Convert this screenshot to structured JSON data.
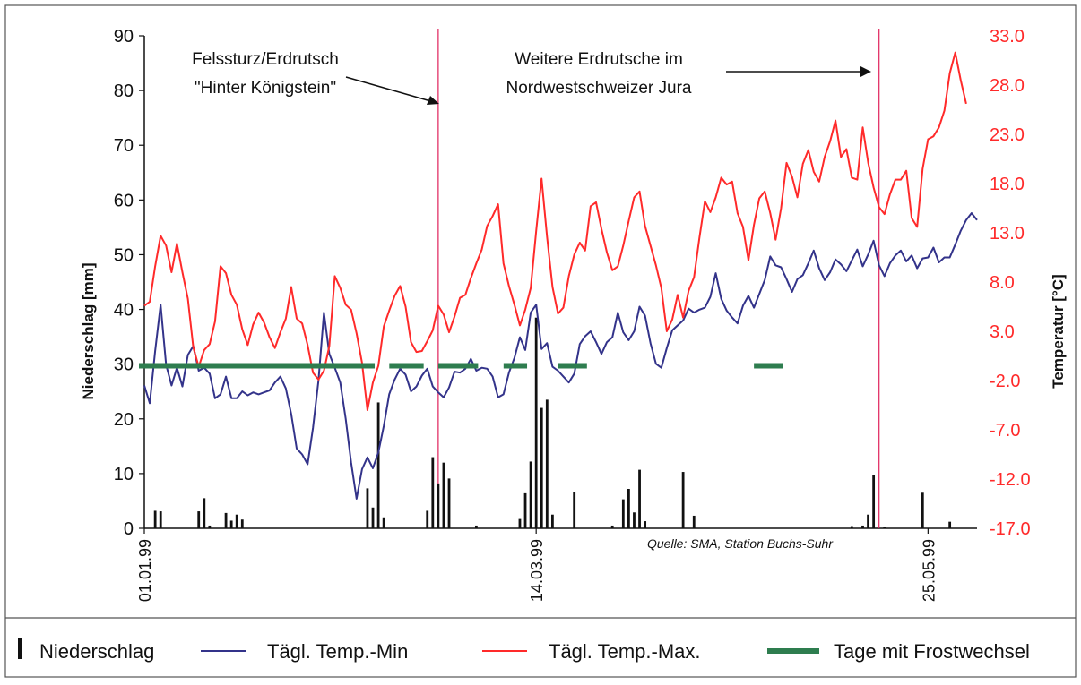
{
  "chart_data": {
    "type": "bar+line",
    "title": "",
    "ylabel_left": "Niederschlag [mm]",
    "ylabel_right": "Temperatur [°C]",
    "y_left_lim": [
      0,
      90
    ],
    "y_left_ticks": [
      "90",
      "80",
      "70",
      "60",
      "50",
      "40",
      "30",
      "20",
      "10",
      "0"
    ],
    "y_right_lim": [
      -17.0,
      33.0
    ],
    "y_right_ticks": [
      "33.0",
      "28.0",
      "23.0",
      "18.0",
      "13.0",
      "8.0",
      "3.0",
      "-2.0",
      "-7.0",
      "-12.0",
      "-17.0"
    ],
    "x_ticks": [
      "01.01.99",
      "14.03.99",
      "25.05.99"
    ],
    "x_range_days": [
      1,
      154
    ],
    "grid": false,
    "series": [
      {
        "name": "Niederschlag",
        "kind": "bar",
        "color": "#111111",
        "values": [
          0,
          0,
          3.2,
          3.1,
          0,
          0,
          0,
          0,
          0,
          0,
          3.1,
          5.5,
          0.5,
          0,
          0,
          2.8,
          1.4,
          2.5,
          1.6,
          0,
          0,
          0,
          0,
          0,
          0,
          0,
          0,
          0,
          0,
          0,
          0,
          0,
          0,
          0,
          0,
          0,
          0,
          0,
          0,
          0,
          0,
          7.3,
          3.8,
          23,
          2,
          0,
          0,
          0,
          0,
          0,
          0,
          0,
          3.2,
          13,
          8.2,
          12,
          9.1,
          0,
          0,
          0,
          0,
          0.5,
          0,
          0,
          0,
          0,
          0,
          0,
          0,
          1.7,
          6.4,
          12.2,
          38.5,
          22,
          23.5,
          2.5,
          0,
          0,
          0,
          6.6,
          0,
          0,
          0,
          0,
          0,
          0,
          0.5,
          0,
          5.3,
          7.2,
          2.9,
          10.7,
          1.3,
          0,
          0,
          0,
          0,
          0,
          0,
          10.3,
          0,
          2.3,
          0,
          0,
          0,
          0,
          0,
          0,
          0,
          0,
          0,
          0,
          0,
          0,
          0,
          0,
          0,
          0,
          0,
          0,
          0,
          0,
          0,
          0,
          0,
          0,
          0,
          0,
          0,
          0,
          0.4,
          0,
          0.5,
          2.5,
          9.7,
          0,
          0.3,
          0,
          0,
          0,
          0,
          0,
          0,
          6.5,
          0,
          0,
          0,
          0,
          1.2,
          0,
          0,
          0,
          0,
          0,
          0,
          0,
          0,
          0
        ]
      },
      {
        "name": "Tägl. Temp.-Min",
        "kind": "line",
        "color": "#33338a",
        "values": [
          -2.5,
          -4.3,
          1.0,
          5.7,
          -0.4,
          -2.5,
          -0.7,
          -2.6,
          0.6,
          1.5,
          -1.0,
          -0.7,
          -1.3,
          -3.8,
          -3.4,
          -1.6,
          -3.8,
          -3.8,
          -3.1,
          -3.5,
          -3.2,
          -3.4,
          -3.2,
          -3.0,
          -2.2,
          -1.6,
          -2.8,
          -5.4,
          -8.9,
          -9.5,
          -10.5,
          -6.8,
          -2.0,
          4.9,
          0.7,
          -0.7,
          -2.2,
          -5.9,
          -10.3,
          -14.0,
          -11.0,
          -9.8,
          -10.9,
          -9.3,
          -6.6,
          -3.4,
          -1.9,
          -0.8,
          -1.4,
          -3.1,
          -2.6,
          -1.5,
          -0.8,
          -2.6,
          -3.2,
          -3.7,
          -2.7,
          -1.1,
          -1.2,
          -0.8,
          0.2,
          -1.0,
          -0.7,
          -0.8,
          -1.6,
          -3.7,
          -3.4,
          -1.2,
          0.3,
          2.4,
          1.1,
          4.9,
          5.7,
          1.2,
          1.8,
          -0.6,
          -1.0,
          -1.6,
          -2.2,
          -1.3,
          1.7,
          2.5,
          3.0,
          1.9,
          0.7,
          1.9,
          2.4,
          4.9,
          2.9,
          2.1,
          3.0,
          5.5,
          4.6,
          1.8,
          -0.3,
          -0.7,
          1.3,
          3.1,
          3.6,
          4.1,
          5.3,
          4.9,
          5.2,
          5.4,
          6.5,
          8.9,
          6.3,
          5.1,
          4.4,
          3.8,
          5.6,
          6.6,
          5.4,
          6.8,
          8.2,
          10.6,
          9.7,
          9.5,
          8.3,
          7.0,
          8.3,
          8.7,
          9.9,
          11.2,
          9.4,
          8.2,
          9.0,
          10.3,
          9.8,
          9.1,
          10.2,
          11.3,
          9.6,
          10.8,
          12.2,
          9.7,
          8.6,
          9.9,
          10.7,
          11.2,
          10.1,
          10.7,
          9.4,
          10.4,
          10.5,
          11.5,
          10.0,
          10.5,
          10.5,
          11.8,
          13.2,
          14.3,
          15.0,
          14.3
        ]
      },
      {
        "name": "Tägl. Temp.-Max.",
        "kind": "line",
        "color": "#ff2a2a",
        "values": [
          5.6,
          6.0,
          9.6,
          12.7,
          11.7,
          9.0,
          11.9,
          9.0,
          6.3,
          1.4,
          -0.6,
          1.1,
          1.7,
          4.0,
          9.6,
          8.9,
          6.7,
          5.7,
          3.2,
          1.6,
          3.7,
          4.9,
          3.9,
          2.4,
          1.3,
          2.9,
          4.3,
          7.5,
          4.3,
          3.8,
          1.6,
          -1.2,
          -1.9,
          -1.0,
          1.5,
          8.6,
          7.4,
          5.7,
          5.2,
          2.8,
          -0.2,
          -5.0,
          -2.2,
          -0.5,
          3.5,
          5.1,
          6.6,
          7.6,
          5.5,
          1.9,
          0.9,
          1.0,
          2.0,
          3.1,
          5.6,
          4.7,
          2.9,
          4.5,
          6.4,
          6.7,
          8.4,
          9.9,
          11.3,
          13.7,
          14.7,
          15.9,
          9.9,
          7.6,
          5.7,
          3.6,
          5.2,
          7.4,
          13.2,
          18.5,
          12.6,
          7.5,
          4.8,
          5.4,
          8.6,
          10.8,
          12.0,
          11.2,
          15.7,
          16.1,
          13.4,
          11.0,
          9.2,
          9.6,
          11.7,
          14.2,
          16.6,
          17.2,
          13.7,
          11.7,
          9.7,
          7.4,
          3.0,
          4.2,
          6.7,
          4.4,
          7.1,
          8.5,
          12.5,
          16.2,
          15.1,
          16.6,
          18.6,
          17.9,
          18.2,
          15.0,
          13.6,
          10.2,
          13.8,
          16.5,
          17.2,
          15.0,
          12.3,
          15.5,
          20.1,
          18.7,
          16.6,
          20.0,
          21.4,
          19.2,
          18.2,
          20.7,
          22.3,
          24.4,
          20.7,
          21.5,
          18.6,
          18.4,
          23.7,
          20.1,
          17.6,
          15.6,
          14.9,
          16.9,
          18.4,
          18.4,
          19.3,
          14.5,
          13.6,
          19.5,
          22.5,
          22.8,
          23.7,
          25.4,
          29.2,
          31.3,
          28.5,
          26.1
        ]
      },
      {
        "name": "Tage mit Frostwechsel",
        "kind": "segments",
        "color": "#2e7d4f",
        "value": -0.5,
        "ranges": [
          [
            1,
            43
          ],
          [
            47,
            52
          ],
          [
            56,
            62
          ],
          [
            68,
            71
          ],
          [
            78,
            82
          ],
          [
            114,
            118
          ]
        ]
      }
    ],
    "vertical_markers": [
      55,
      136
    ],
    "annotations": [
      {
        "lines": [
          "Felssturz/Erdrutsch",
          "\"Hinter Königstein\""
        ],
        "target_day": 55
      },
      {
        "lines": [
          "Weitere Erdrutsche im",
          "Nordwestschweizer Jura"
        ],
        "target_day": 136
      }
    ],
    "source": "Quelle: SMA, Station Buchs-Suhr",
    "legend_position": "bottom"
  },
  "legend": {
    "niederschlag": "Niederschlag",
    "tmin": "Tägl. Temp.-Min",
    "tmax": "Tägl. Temp.-Max.",
    "frost": "Tage mit Frostwechsel"
  }
}
